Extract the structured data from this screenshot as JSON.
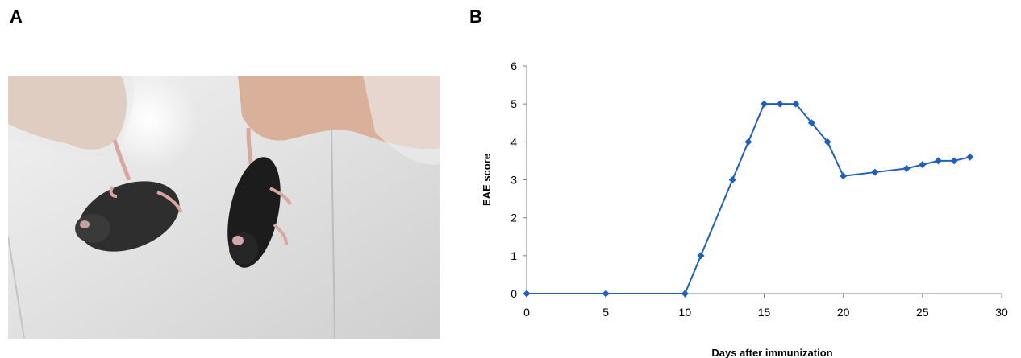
{
  "panels": {
    "a_label": "A",
    "b_label": "B"
  },
  "photo": {
    "subject": "two-black-mice-held-by-tails"
  },
  "chart_data": {
    "type": "line",
    "title": "",
    "xlabel": "Days after immunization",
    "ylabel": "EAE score",
    "xlim": [
      0,
      30
    ],
    "ylim": [
      0,
      6
    ],
    "xticks": [
      0,
      5,
      10,
      15,
      20,
      25,
      30
    ],
    "yticks": [
      0,
      1,
      2,
      3,
      4,
      5,
      6
    ],
    "grid": false,
    "legend": "none",
    "series": [
      {
        "color": "#1f5fbf",
        "marker": "diamond",
        "x": [
          0,
          5,
          10,
          11,
          13,
          14,
          15,
          16,
          17,
          18,
          19,
          20,
          22,
          24,
          25,
          26,
          27,
          28
        ],
        "y": [
          0,
          0,
          0,
          1,
          3,
          4,
          5,
          5,
          5,
          4.5,
          4,
          3.1,
          3.2,
          3.3,
          3.4,
          3.5,
          3.5,
          3.6
        ]
      }
    ]
  }
}
